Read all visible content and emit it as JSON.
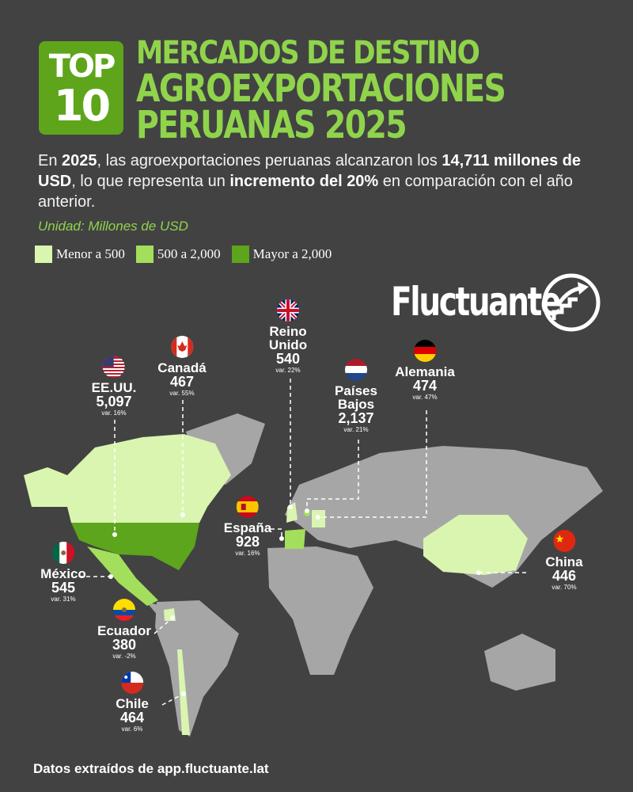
{
  "badge": {
    "line1": "TOP",
    "line2": "10"
  },
  "title": {
    "line1": "MERCADOS DE DESTINO",
    "line2": "AGROEXPORTACIONES",
    "line3": "PERUANAS 2025"
  },
  "description": {
    "p1": "En ",
    "b1": "2025",
    "p2": ", las agroexportaciones peruanas alcanzaron los ",
    "b2": "14,711 millones de USD",
    "p3": ", lo que representa un ",
    "b3": "incremento del 20%",
    "p4": " en comparación con el año anterior."
  },
  "unit": "Unidad: Millones de USD",
  "legend": [
    {
      "label": "Menor a 500",
      "color": "#d9f5b0"
    },
    {
      "label": "500 a 2,000",
      "color": "#a3df5c"
    },
    {
      "label": "Mayor a 2,000",
      "color": "#5ca51c"
    }
  ],
  "brand": "Fluctuante",
  "markets": [
    {
      "name": "EE.UU.",
      "value": "5,097",
      "var": "var. 16%",
      "flag": "us-flag-icon"
    },
    {
      "name": "Canadá",
      "value": "467",
      "var": "var. 55%",
      "flag": "canada-flag-icon"
    },
    {
      "name": "Reino Unido",
      "value": "540",
      "var": "var. 22%",
      "flag": "uk-flag-icon"
    },
    {
      "name": "Países Bajos",
      "value": "2,137",
      "var": "var. 21%",
      "flag": "netherlands-flag-icon"
    },
    {
      "name": "Alemania",
      "value": "474",
      "var": "var. 47%",
      "flag": "germany-flag-icon"
    },
    {
      "name": "España",
      "value": "928",
      "var": "var. 16%",
      "flag": "spain-flag-icon"
    },
    {
      "name": "México",
      "value": "545",
      "var": "var. 31%",
      "flag": "mexico-flag-icon"
    },
    {
      "name": "Ecuador",
      "value": "380",
      "var": "var. -2%",
      "flag": "ecuador-flag-icon"
    },
    {
      "name": "Chile",
      "value": "464",
      "var": "var. 6%",
      "flag": "chile-flag-icon"
    },
    {
      "name": "China",
      "value": "446",
      "var": "var. 70%",
      "flag": "china-flag-icon"
    }
  ],
  "footer": "Datos extraídos de app.fluctuante.lat",
  "colors": {
    "background": "#424242",
    "accent": "#8fd44b",
    "land": "#a6a6a6"
  }
}
